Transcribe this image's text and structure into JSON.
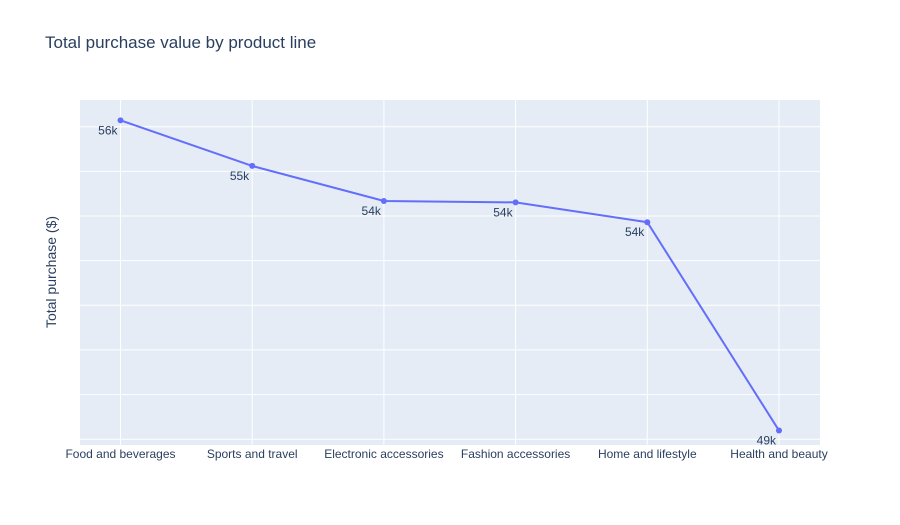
{
  "chart_data": {
    "type": "line",
    "title": "Total purchase value by product line",
    "xlabel": "",
    "ylabel": "Total purchase ($)",
    "categories": [
      "Food and beverages",
      "Sports and travel",
      "Electronic accessories",
      "Fashion accessories",
      "Home and lifestyle",
      "Health and beauty"
    ],
    "series": [
      {
        "values": [
          56144.84,
          55122.83,
          54337.53,
          54305.9,
          53861.91,
          49193.74
        ],
        "labels": [
          "56k",
          "55k",
          "54k",
          "54k",
          "54k",
          "49k"
        ]
      }
    ],
    "ylim": [
      48870,
      56600
    ],
    "grid": true,
    "colors": {
      "line": "#636efa",
      "plot_bg": "#e5ecf6",
      "grid": "#ffffff",
      "text": "#2a3f5f"
    }
  }
}
